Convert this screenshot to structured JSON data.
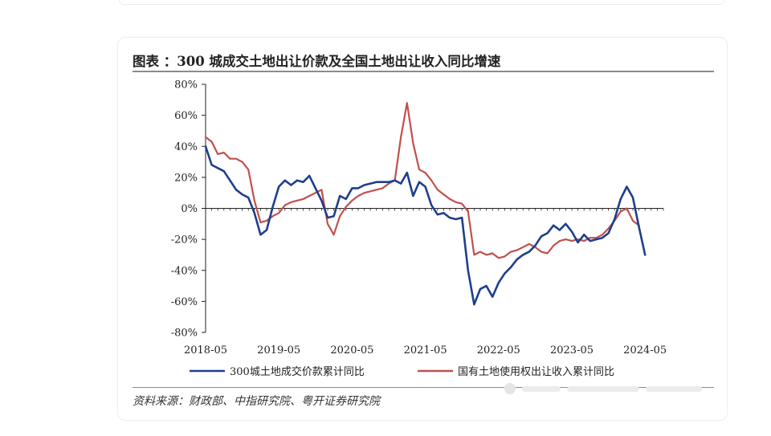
{
  "chart_title": "图表 ：300 城成交土地出让价款及全国土地出让收入同比增速",
  "source_note": "资料来源：财政部、中指研究院、粤开证券研究院",
  "chart_data": {
    "type": "line",
    "title": "图表 ：300 城成交土地出让价款及全国土地出让收入同比增速",
    "xlabel": "",
    "ylabel": "",
    "x_range": [
      "2018-05",
      "2024-08"
    ],
    "ylim": [
      -80,
      80
    ],
    "y_unit": "%",
    "y_ticks": [
      "80%",
      "60%",
      "40%",
      "20%",
      "0%",
      "-20%",
      "-40%",
      "-60%",
      "-80%"
    ],
    "x_ticks": [
      "2018-05",
      "2019-05",
      "2020-05",
      "2021-05",
      "2022-05",
      "2023-05",
      "2024-05"
    ],
    "grid": false,
    "legend_position": "bottom",
    "series": [
      {
        "name": "300城土地成交价款累计同比",
        "color": "#1f3e8c",
        "points": [
          [
            "2018-05",
            40
          ],
          [
            "2018-06",
            28
          ],
          [
            "2018-07",
            26
          ],
          [
            "2018-08",
            24
          ],
          [
            "2018-09",
            18
          ],
          [
            "2018-10",
            12
          ],
          [
            "2018-11",
            9
          ],
          [
            "2018-12",
            7
          ],
          [
            "2019-01",
            -3
          ],
          [
            "2019-02",
            -17
          ],
          [
            "2019-03",
            -14
          ],
          [
            "2019-04",
            1
          ],
          [
            "2019-05",
            14
          ],
          [
            "2019-06",
            18
          ],
          [
            "2019-07",
            15
          ],
          [
            "2019-08",
            18
          ],
          [
            "2019-09",
            17
          ],
          [
            "2019-10",
            21
          ],
          [
            "2019-11",
            13
          ],
          [
            "2019-12",
            5
          ],
          [
            "2020-01",
            -6
          ],
          [
            "2020-02",
            -5
          ],
          [
            "2020-03",
            8
          ],
          [
            "2020-04",
            6
          ],
          [
            "2020-05",
            13
          ],
          [
            "2020-06",
            13
          ],
          [
            "2020-07",
            15
          ],
          [
            "2020-08",
            16
          ],
          [
            "2020-09",
            17
          ],
          [
            "2020-10",
            17
          ],
          [
            "2020-11",
            17
          ],
          [
            "2020-12",
            18
          ],
          [
            "2021-01",
            16
          ],
          [
            "2021-02",
            23
          ],
          [
            "2021-03",
            8
          ],
          [
            "2021-04",
            17
          ],
          [
            "2021-05",
            14
          ],
          [
            "2021-06",
            2
          ],
          [
            "2021-07",
            -4
          ],
          [
            "2021-08",
            -3
          ],
          [
            "2021-09",
            -6
          ],
          [
            "2021-10",
            -7
          ],
          [
            "2021-11",
            -6
          ],
          [
            "2021-12",
            -40
          ],
          [
            "2022-01",
            -62
          ],
          [
            "2022-02",
            -52
          ],
          [
            "2022-03",
            -50
          ],
          [
            "2022-04",
            -57
          ],
          [
            "2022-05",
            -48
          ],
          [
            "2022-06",
            -42
          ],
          [
            "2022-07",
            -38
          ],
          [
            "2022-08",
            -33
          ],
          [
            "2022-09",
            -30
          ],
          [
            "2022-10",
            -28
          ],
          [
            "2022-11",
            -24
          ],
          [
            "2022-12",
            -18
          ],
          [
            "2023-01",
            -16
          ],
          [
            "2023-02",
            -11
          ],
          [
            "2023-03",
            -14
          ],
          [
            "2023-04",
            -10
          ],
          [
            "2023-05",
            -15
          ],
          [
            "2023-06",
            -22
          ],
          [
            "2023-07",
            -17
          ],
          [
            "2023-08",
            -21
          ],
          [
            "2023-09",
            -20
          ],
          [
            "2023-10",
            -19
          ],
          [
            "2023-11",
            -16
          ],
          [
            "2023-12",
            -7
          ],
          [
            "2024-01",
            6
          ],
          [
            "2024-02",
            14
          ],
          [
            "2024-03",
            7
          ],
          [
            "2024-04",
            -12
          ],
          [
            "2024-05",
            -30
          ]
        ]
      },
      {
        "name": "国有土地使用权出让收入累计同比",
        "color": "#c0504d",
        "points": [
          [
            "2018-05",
            46
          ],
          [
            "2018-06",
            43
          ],
          [
            "2018-07",
            35
          ],
          [
            "2018-08",
            36
          ],
          [
            "2018-09",
            32
          ],
          [
            "2018-10",
            32
          ],
          [
            "2018-11",
            30
          ],
          [
            "2018-12",
            25
          ],
          [
            "2019-01",
            5
          ],
          [
            "2019-02",
            -9
          ],
          [
            "2019-03",
            -8
          ],
          [
            "2019-04",
            -5
          ],
          [
            "2019-05",
            -3
          ],
          [
            "2019-06",
            2
          ],
          [
            "2019-07",
            4
          ],
          [
            "2019-08",
            5
          ],
          [
            "2019-09",
            6
          ],
          [
            "2019-10",
            8
          ],
          [
            "2019-11",
            10
          ],
          [
            "2019-12",
            12
          ],
          [
            "2020-01",
            -10
          ],
          [
            "2020-02",
            -17
          ],
          [
            "2020-03",
            -5
          ],
          [
            "2020-04",
            1
          ],
          [
            "2020-05",
            5
          ],
          [
            "2020-06",
            8
          ],
          [
            "2020-07",
            10
          ],
          [
            "2020-08",
            11
          ],
          [
            "2020-09",
            12
          ],
          [
            "2020-10",
            13
          ],
          [
            "2020-11",
            16
          ],
          [
            "2020-12",
            18
          ],
          [
            "2021-01",
            46
          ],
          [
            "2021-02",
            68
          ],
          [
            "2021-03",
            42
          ],
          [
            "2021-04",
            25
          ],
          [
            "2021-05",
            23
          ],
          [
            "2021-06",
            18
          ],
          [
            "2021-07",
            12
          ],
          [
            "2021-08",
            9
          ],
          [
            "2021-09",
            6
          ],
          [
            "2021-10",
            4
          ],
          [
            "2021-11",
            3
          ],
          [
            "2021-12",
            -2
          ],
          [
            "2022-01",
            -30
          ],
          [
            "2022-02",
            -28
          ],
          [
            "2022-03",
            -30
          ],
          [
            "2022-04",
            -29
          ],
          [
            "2022-05",
            -32
          ],
          [
            "2022-06",
            -31
          ],
          [
            "2022-07",
            -28
          ],
          [
            "2022-08",
            -27
          ],
          [
            "2022-09",
            -25
          ],
          [
            "2022-10",
            -23
          ],
          [
            "2022-11",
            -25
          ],
          [
            "2022-12",
            -28
          ],
          [
            "2023-01",
            -29
          ],
          [
            "2023-02",
            -24
          ],
          [
            "2023-03",
            -21
          ],
          [
            "2023-04",
            -20
          ],
          [
            "2023-05",
            -21
          ],
          [
            "2023-06",
            -20
          ],
          [
            "2023-07",
            -21
          ],
          [
            "2023-08",
            -19
          ],
          [
            "2023-09",
            -19
          ],
          [
            "2023-10",
            -17
          ],
          [
            "2023-11",
            -13
          ],
          [
            "2023-12",
            -8
          ],
          [
            "2024-01",
            -2
          ],
          [
            "2024-02",
            0
          ],
          [
            "2024-03",
            -8
          ],
          [
            "2024-04",
            -11
          ]
        ]
      }
    ]
  },
  "watermark": {
    "icon": "wechat-circle-icon"
  }
}
